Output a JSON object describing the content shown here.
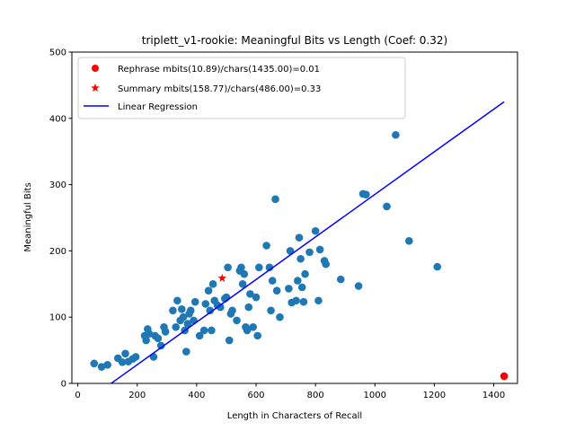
{
  "chart_data": {
    "type": "scatter",
    "title": "triplett_v1-rookie: Meaningful Bits vs Length (Coef: 0.32)",
    "xlabel": "Length in Characters of Recall",
    "ylabel": "Meaningful Bits",
    "xlim": [
      -20,
      1480
    ],
    "ylim": [
      0,
      500
    ],
    "xticks": [
      0,
      200,
      400,
      600,
      800,
      1000,
      1200,
      1400
    ],
    "yticks": [
      0,
      100,
      200,
      300,
      400,
      500
    ],
    "grid": false,
    "legend_position": "upper-left",
    "colors": {
      "points": "#1f77b4",
      "rephrase": "#ff0000",
      "summary": "#ff0000",
      "regression": "#0000ff"
    },
    "series": [
      {
        "kind": "scatter",
        "points": [
          [
            55,
            30
          ],
          [
            80,
            25
          ],
          [
            100,
            28
          ],
          [
            135,
            38
          ],
          [
            150,
            32
          ],
          [
            160,
            45
          ],
          [
            170,
            33
          ],
          [
            185,
            37
          ],
          [
            195,
            40
          ],
          [
            225,
            72
          ],
          [
            230,
            65
          ],
          [
            235,
            82
          ],
          [
            240,
            75
          ],
          [
            255,
            40
          ],
          [
            260,
            72
          ],
          [
            270,
            68
          ],
          [
            280,
            57
          ],
          [
            290,
            85
          ],
          [
            295,
            78
          ],
          [
            320,
            110
          ],
          [
            330,
            85
          ],
          [
            335,
            125
          ],
          [
            345,
            95
          ],
          [
            350,
            112
          ],
          [
            355,
            100
          ],
          [
            360,
            80
          ],
          [
            365,
            48
          ],
          [
            370,
            90
          ],
          [
            375,
            105
          ],
          [
            380,
            110
          ],
          [
            390,
            95
          ],
          [
            395,
            123
          ],
          [
            410,
            72
          ],
          [
            425,
            80
          ],
          [
            430,
            120
          ],
          [
            440,
            140
          ],
          [
            445,
            110
          ],
          [
            450,
            80
          ],
          [
            455,
            150
          ],
          [
            460,
            125
          ],
          [
            470,
            118
          ],
          [
            480,
            115
          ],
          [
            495,
            128
          ],
          [
            500,
            130
          ],
          [
            505,
            175
          ],
          [
            510,
            65
          ],
          [
            515,
            105
          ],
          [
            520,
            110
          ],
          [
            535,
            95
          ],
          [
            545,
            170
          ],
          [
            550,
            175
          ],
          [
            555,
            150
          ],
          [
            560,
            165
          ],
          [
            565,
            85
          ],
          [
            570,
            80
          ],
          [
            575,
            115
          ],
          [
            580,
            135
          ],
          [
            590,
            85
          ],
          [
            600,
            130
          ],
          [
            605,
            72
          ],
          [
            610,
            175
          ],
          [
            635,
            208
          ],
          [
            645,
            175
          ],
          [
            650,
            110
          ],
          [
            655,
            155
          ],
          [
            665,
            278
          ],
          [
            670,
            140
          ],
          [
            680,
            100
          ],
          [
            710,
            143
          ],
          [
            715,
            200
          ],
          [
            720,
            122
          ],
          [
            735,
            125
          ],
          [
            740,
            155
          ],
          [
            745,
            220
          ],
          [
            750,
            188
          ],
          [
            755,
            145
          ],
          [
            760,
            123
          ],
          [
            765,
            165
          ],
          [
            780,
            198
          ],
          [
            800,
            230
          ],
          [
            810,
            125
          ],
          [
            815,
            202
          ],
          [
            830,
            185
          ],
          [
            835,
            180
          ],
          [
            885,
            157
          ],
          [
            945,
            147
          ],
          [
            960,
            286
          ],
          [
            970,
            285
          ],
          [
            1040,
            267
          ],
          [
            1070,
            375
          ],
          [
            1115,
            215
          ],
          [
            1210,
            176
          ]
        ]
      },
      {
        "kind": "point",
        "marker": "circle",
        "name": "Rephrase mbits(10.89)/chars(1435.00)=0.01",
        "points": [
          [
            1435,
            10.89
          ]
        ]
      },
      {
        "kind": "point",
        "marker": "star",
        "name": "Summary mbits(158.77)/chars(486.00)=0.33",
        "points": [
          [
            486,
            158.77
          ]
        ]
      },
      {
        "kind": "line",
        "name": "Linear Regression",
        "points": [
          [
            0,
            -36
          ],
          [
            1435,
            425
          ]
        ]
      }
    ]
  }
}
